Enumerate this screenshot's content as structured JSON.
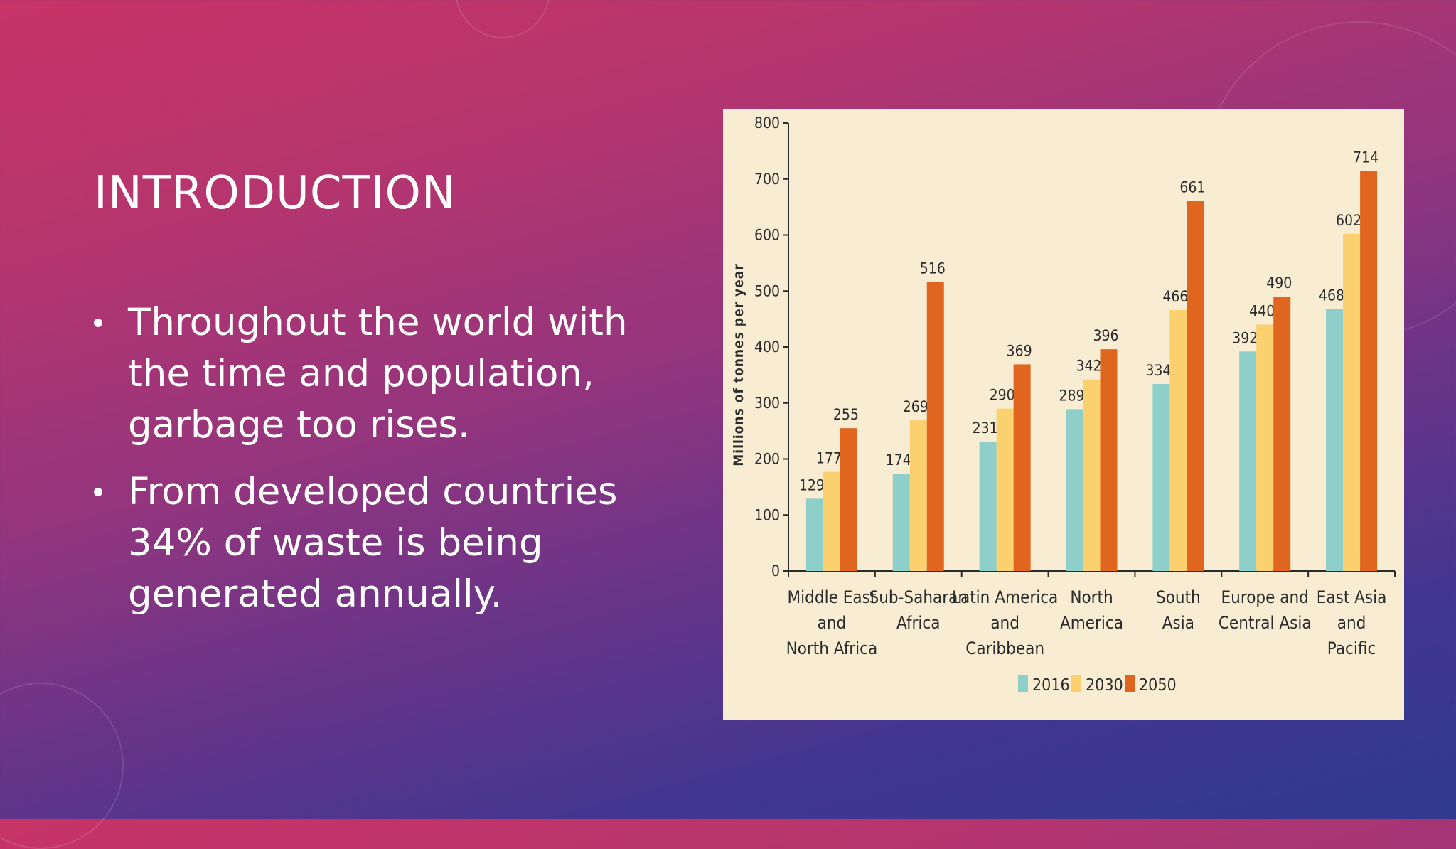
{
  "slide": {
    "title": "INTRODUCTION",
    "bullets": [
      "Throughout the world with the time and population, garbage too rises.",
      "From developed countries 34% of waste is being generated annually."
    ]
  },
  "chart_data": {
    "type": "bar",
    "title": "",
    "xlabel": "",
    "ylabel": "Millions of tonnes per year",
    "ylim": [
      0,
      800
    ],
    "yticks": [
      0,
      100,
      200,
      300,
      400,
      500,
      600,
      700,
      800
    ],
    "categories": [
      [
        "Middle East",
        "and",
        "North Africa"
      ],
      [
        "Sub-Saharan",
        "Africa"
      ],
      [
        "Latin America",
        "and",
        "Caribbean"
      ],
      [
        "North",
        "America"
      ],
      [
        "South",
        "Asia"
      ],
      [
        "Europe and",
        "Central Asia"
      ],
      [
        "East Asia",
        "and",
        "Pacific"
      ]
    ],
    "series": [
      {
        "name": "2016",
        "color": "#8ecfca",
        "values": [
          129,
          174,
          231,
          289,
          334,
          392,
          468
        ]
      },
      {
        "name": "2030",
        "color": "#fbd170",
        "values": [
          177,
          269,
          290,
          342,
          466,
          440,
          602
        ]
      },
      {
        "name": "2050",
        "color": "#e0661f",
        "values": [
          255,
          516,
          369,
          396,
          661,
          490,
          714
        ]
      }
    ],
    "legend_position": "bottom-center",
    "grid": false
  }
}
